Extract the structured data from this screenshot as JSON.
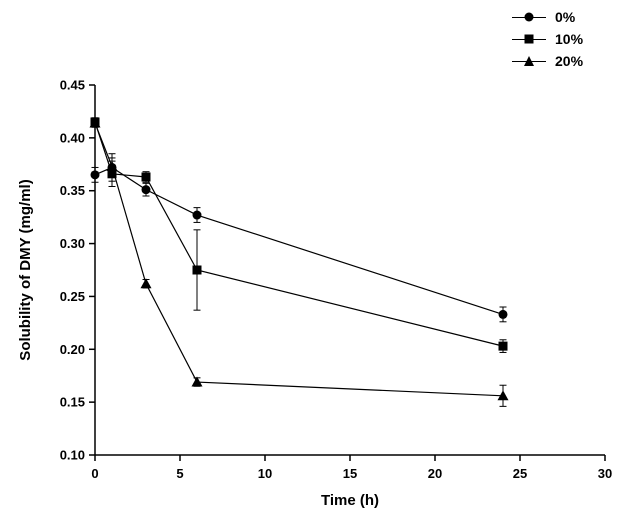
{
  "chart_data": {
    "type": "line",
    "title": "",
    "xlabel": "Time (h)",
    "ylabel": "Solubility of DMY (mg/ml)",
    "xlim": [
      0,
      30
    ],
    "ylim": [
      0.1,
      0.45
    ],
    "xticks": [
      0,
      5,
      10,
      15,
      20,
      25,
      30
    ],
    "yticks": [
      0.1,
      0.15,
      0.2,
      0.25,
      0.3,
      0.35,
      0.4,
      0.45
    ],
    "grid": false,
    "legend_position": "top-right-outside",
    "x": [
      0,
      1,
      3,
      6,
      24
    ],
    "series": [
      {
        "name": "0%",
        "marker": "circle",
        "y": [
          0.365,
          0.372,
          0.351,
          0.327,
          0.233
        ],
        "err": [
          0.007,
          0.013,
          0.006,
          0.007,
          0.007
        ]
      },
      {
        "name": "10%",
        "marker": "square",
        "y": [
          0.415,
          0.366,
          0.363,
          0.275,
          0.203
        ],
        "err": [
          0.004,
          0.012,
          0.005,
          0.038,
          0.006
        ]
      },
      {
        "name": "20%",
        "marker": "triangle",
        "y": [
          0.414,
          0.373,
          0.262,
          0.169,
          0.156
        ],
        "err": [
          0.004,
          0.008,
          0.004,
          0.004,
          0.01
        ]
      }
    ],
    "colors": {
      "line": "#000000",
      "marker": "#000000",
      "background": "#ffffff"
    }
  }
}
